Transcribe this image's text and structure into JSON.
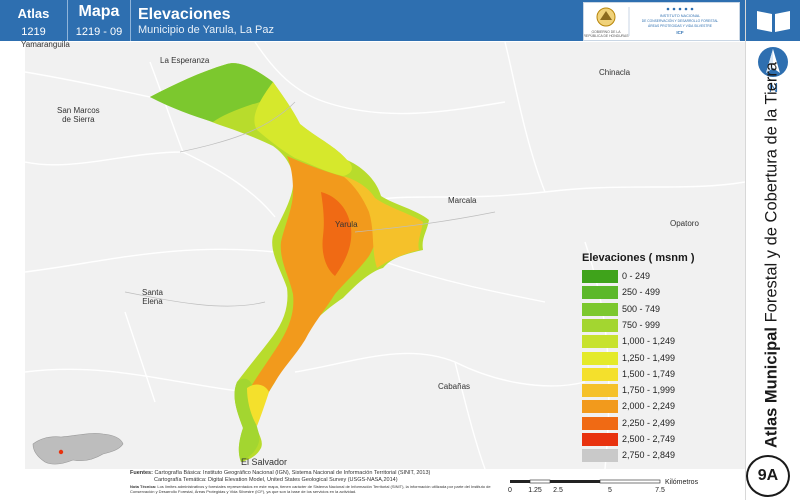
{
  "header": {
    "atlas_label": "Atlas",
    "atlas_number": "1219",
    "map_label": "Mapa",
    "map_number": "1219 - 09",
    "title": "Elevaciones",
    "subtitle": "Municipio de Yarula, La Paz",
    "institute_text": "INSTITUTO NACIONAL DE CONSERVACIÓN Y DESARROLLO FORESTAL ÁREAS PROTEGIDAS Y VIDA SILVESTRE",
    "institute_acronym": "ICF",
    "gov_text": "GOBIERNO DE LA REPÚBLICA DE HONDURAS"
  },
  "sidebar": {
    "north_label": "N",
    "vertical_title_bold": "Atlas Municipal",
    "vertical_title_rest": " Forestal y de Cobertura de la Tierra",
    "badge": "9A"
  },
  "places": {
    "yamaranguila": "Yamaranguila",
    "la_esperanza": "La Esperanza",
    "san_marcos": "San Marcos\nde Sierra",
    "chinacla": "Chinacla",
    "marcala": "Marcala",
    "yarula": "Yarula",
    "opatoro": "Opatoro",
    "santa_elena": "Santa\nElena",
    "cabanas": "Cabañas",
    "el_salvador": "El Salvador"
  },
  "legend": {
    "title": "Elevaciones ( msnm )",
    "items": [
      {
        "label": "0 - 249",
        "color": "#3fa31b"
      },
      {
        "label": "250 - 499",
        "color": "#5cb82a"
      },
      {
        "label": "500 - 749",
        "color": "#7cc82e"
      },
      {
        "label": "750 - 999",
        "color": "#a3d630"
      },
      {
        "label": "1,000 - 1,249",
        "color": "#c7e22e"
      },
      {
        "label": "1,250 - 1,499",
        "color": "#e4ea2a"
      },
      {
        "label": "1,500 - 1,749",
        "color": "#f4e02c"
      },
      {
        "label": "1,750 - 1,999",
        "color": "#f5c12a"
      },
      {
        "label": "2,000 - 2,249",
        "color": "#f29a1c"
      },
      {
        "label": "2,250 - 2,499",
        "color": "#f06a14"
      },
      {
        "label": "2,500 - 2,749",
        "color": "#e8320e"
      },
      {
        "label": "2,750 - 2,849",
        "color": "#c9c9c9"
      }
    ]
  },
  "footer": {
    "fuentes_label": "Fuentes:",
    "fuentes_line1": "Cartografía Básica: Instituto Geográfico Nacional (IGN), Sistema Nacional de Información Territorial (SINIT, 2013)",
    "fuentes_line2": "Cartografía Temática: Digital Elevation Model, United States Geological Survey (USGS-NASA,2014)",
    "nota_label": "Nota Técnica:",
    "nota_text": "Los límites administrativos y forestales representados en este mapa, tienen carácter de Sistema Nacional de Información Territorial (SINIT), la información utilizada por parte del Instituto de Conservación y Desarrollo Forestal, Áreas Protegidas y Vida Silvestre (ICF), ya que son la base de los servicios en la actividad."
  },
  "scale": {
    "ticks": [
      "0",
      "1.25",
      "2.5",
      "5",
      "7.5"
    ],
    "unit": "Kilómetros"
  }
}
